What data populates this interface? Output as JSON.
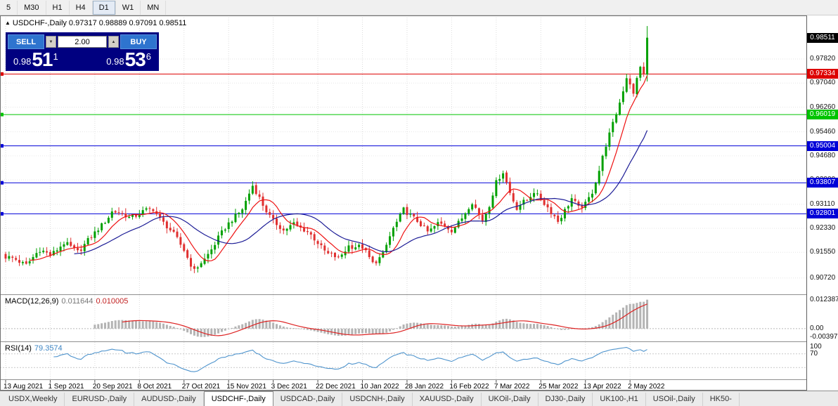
{
  "toolbar": {
    "timeframes": [
      "5",
      "M30",
      "H1",
      "H4",
      "D1",
      "W1",
      "MN"
    ],
    "active": "D1"
  },
  "chart": {
    "header": {
      "collapse_icon": "▲",
      "symbol": "USDCHF-,Daily",
      "ohlc_text": "0.97317 0.98889 0.97091 0.98511"
    },
    "trade_panel": {
      "sell_label": "SELL",
      "buy_label": "BUY",
      "volume": "2.00",
      "volume_up_icon": "▲",
      "volume_down_icon": "▼",
      "sell_price": {
        "prefix": "0.98",
        "big": "51",
        "sup": "1"
      },
      "buy_price": {
        "prefix": "0.98",
        "big": "53",
        "sup": "6"
      }
    },
    "axis": {
      "price_max": 0.9905,
      "price_min": 0.9035
    },
    "scale_labels": [
      {
        "text": "0.97820",
        "price": 0.9782
      },
      {
        "text": "0.97040",
        "price": 0.9704
      },
      {
        "text": "0.96260",
        "price": 0.9626
      },
      {
        "text": "0.95460",
        "price": 0.9546
      },
      {
        "text": "0.94680",
        "price": 0.9468
      },
      {
        "text": "0.93900",
        "price": 0.939
      },
      {
        "text": "0.93110",
        "price": 0.9311
      },
      {
        "text": "0.92330",
        "price": 0.9233
      },
      {
        "text": "0.91550",
        "price": 0.9155
      },
      {
        "text": "0.90720",
        "price": 0.9072
      }
    ],
    "hlines": [
      {
        "text": "0.97334",
        "price": 0.97334,
        "color": "#dd0000"
      },
      {
        "text": "0.96019",
        "price": 0.96019,
        "color": "#00c400"
      },
      {
        "text": "0.95004",
        "price": 0.95004,
        "color": "#0000d8"
      },
      {
        "text": "0.93807",
        "price": 0.93807,
        "color": "#0000d8"
      },
      {
        "text": "0.92801",
        "price": 0.92801,
        "color": "#0000d8"
      }
    ],
    "current_price": {
      "text": "0.98511",
      "price": 0.98511,
      "bg": "#000000"
    },
    "candles": {
      "count": 188,
      "up_color": "#00a000",
      "down_color": "#e03030",
      "keypoints": [
        [
          0,
          0.914
        ],
        [
          6,
          0.9118
        ],
        [
          10,
          0.916
        ],
        [
          13,
          0.915
        ],
        [
          17,
          0.9182
        ],
        [
          21,
          0.916
        ],
        [
          26,
          0.9215
        ],
        [
          31,
          0.9288
        ],
        [
          36,
          0.927
        ],
        [
          39,
          0.9282
        ],
        [
          43,
          0.9295
        ],
        [
          47,
          0.924
        ],
        [
          52,
          0.9165
        ],
        [
          55,
          0.9095
        ],
        [
          58,
          0.913
        ],
        [
          62,
          0.9205
        ],
        [
          65,
          0.9245
        ],
        [
          69,
          0.93
        ],
        [
          72,
          0.9368
        ],
        [
          75,
          0.931
        ],
        [
          78,
          0.9258
        ],
        [
          81,
          0.9222
        ],
        [
          84,
          0.9252
        ],
        [
          88,
          0.9218
        ],
        [
          91,
          0.9188
        ],
        [
          94,
          0.915
        ],
        [
          97,
          0.9132
        ],
        [
          100,
          0.918
        ],
        [
          104,
          0.9168
        ],
        [
          107,
          0.9122
        ],
        [
          110,
          0.9148
        ],
        [
          113,
          0.923
        ],
        [
          116,
          0.9298
        ],
        [
          119,
          0.9262
        ],
        [
          123,
          0.9225
        ],
        [
          126,
          0.9248
        ],
        [
          130,
          0.9228
        ],
        [
          133,
          0.9268
        ],
        [
          136,
          0.9315
        ],
        [
          139,
          0.9262
        ],
        [
          141,
          0.931
        ],
        [
          143,
          0.9378
        ],
        [
          145,
          0.9415
        ],
        [
          147,
          0.9352
        ],
        [
          149,
          0.93
        ],
        [
          152,
          0.9322
        ],
        [
          154,
          0.9355
        ],
        [
          156,
          0.933
        ],
        [
          159,
          0.9282
        ],
        [
          161,
          0.9256
        ],
        [
          163,
          0.9295
        ],
        [
          165,
          0.933
        ],
        [
          167,
          0.9295
        ],
        [
          169,
          0.9312
        ],
        [
          171,
          0.9355
        ],
        [
          173,
          0.942
        ],
        [
          175,
          0.95
        ],
        [
          177,
          0.9572
        ],
        [
          179,
          0.9645
        ],
        [
          181,
          0.9722
        ],
        [
          182,
          0.97
        ],
        [
          183,
          0.9662
        ],
        [
          184,
          0.9716
        ],
        [
          185,
          0.9762
        ],
        [
          186,
          0.9732
        ],
        [
          187,
          0.98511
        ]
      ]
    },
    "last_candle": {
      "o": 0.97317,
      "h": 0.98889,
      "l": 0.97091,
      "c": 0.98511
    },
    "ma": [
      {
        "period": 8,
        "color": "#ee1111"
      },
      {
        "period": 21,
        "color": "#1c1c96"
      }
    ]
  },
  "macd": {
    "title": "MACD(12,26,9)",
    "main_value": "0.011644",
    "signal_value": "0.010005",
    "scale": {
      "max": 0.012387,
      "min": -0.00397
    },
    "scale_labels": [
      {
        "text": "0.012387",
        "value": 0.012387
      },
      {
        "text": "0.00",
        "value": 0
      },
      {
        "text": "-0.00397",
        "value": -0.00397
      }
    ],
    "colors": {
      "hist": "#b4b4b4",
      "signal": "#dd2222"
    }
  },
  "rsi": {
    "title": "RSI(14)",
    "value": "79.3574",
    "color": "#4f94cd",
    "scale_labels": [
      {
        "text": "100",
        "value": 100
      },
      {
        "text": "70",
        "value": 70
      }
    ],
    "levels": [
      70,
      30
    ]
  },
  "time_axis": {
    "labels": [
      "13 Aug 2021",
      "1 Sep 2021",
      "20 Sep 2021",
      "8 Oct 2021",
      "27 Oct 2021",
      "15 Nov 2021",
      "3 Dec 2021",
      "22 Dec 2021",
      "10 Jan 2022",
      "28 Jan 2022",
      "16 Feb 2022",
      "7 Mar 2022",
      "25 Mar 2022",
      "13 Apr 2022",
      "2 May 2022"
    ],
    "label_step": 13
  },
  "tabs": {
    "items": [
      "USDX,Weekly",
      "EURUSD-,Daily",
      "AUDUSD-,Daily",
      "USDCHF-,Daily",
      "USDCAD-,Daily",
      "USDCNH-,Daily",
      "XAUUSD-,Daily",
      "UKOil-,Daily",
      "DJ30-,Daily",
      "UK100-,H1",
      "USOil-,Daily",
      "HK50-"
    ],
    "active_index": 3
  }
}
